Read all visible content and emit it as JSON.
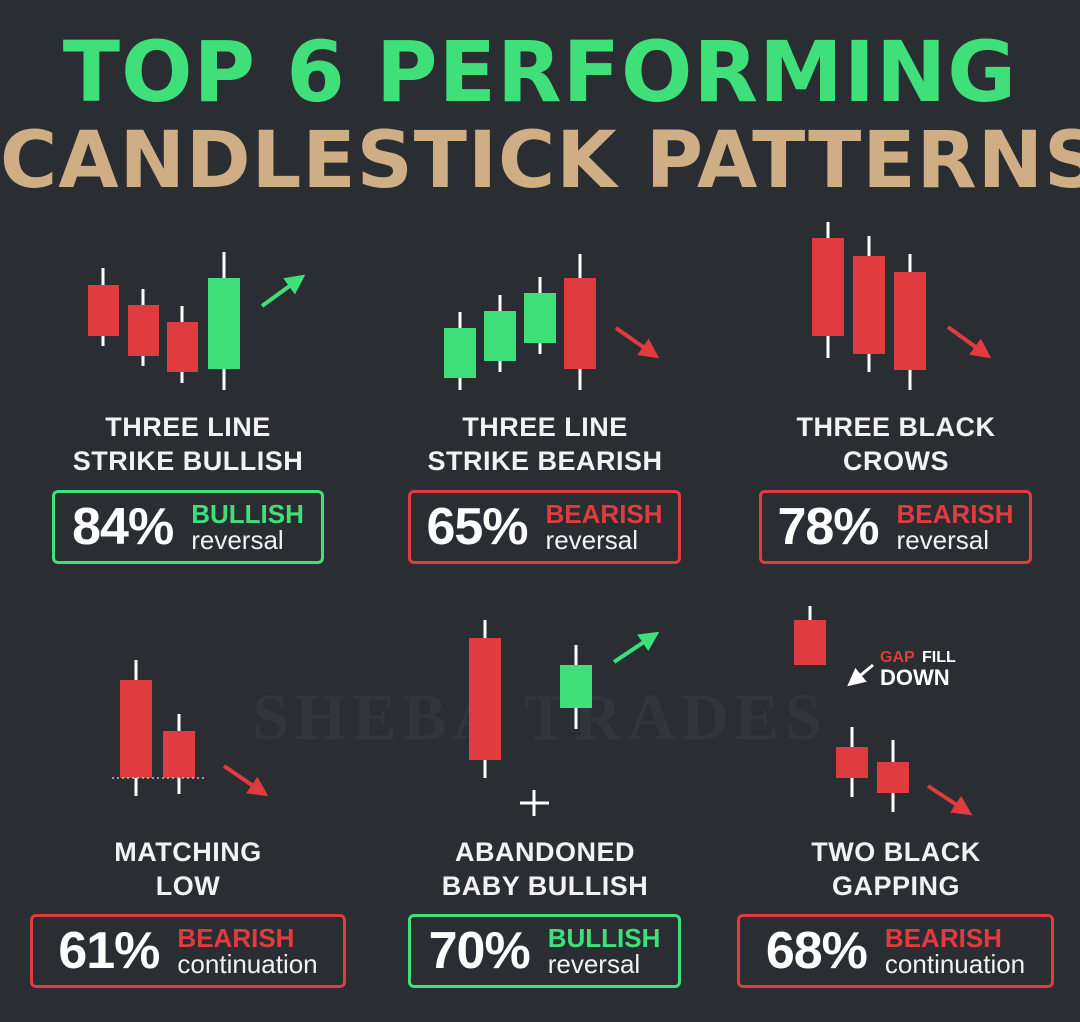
{
  "title_line1": "TOP 6 PERFORMING",
  "title_line2": "CANDLESTICK PATTERNS",
  "watermark": "SHEBA TRADES",
  "colors": {
    "background": "#2a2d32",
    "bullish": "#3fe07a",
    "bearish": "#e03b3f",
    "title_secondary": "#cfae86"
  },
  "patterns": [
    {
      "name_line1": "THREE LINE",
      "name_line2": "STRIKE BULLISH",
      "percent": "84%",
      "type": "BULLISH",
      "subtype": "reversal",
      "color": "green"
    },
    {
      "name_line1": "THREE LINE",
      "name_line2": "STRIKE BEARISH",
      "percent": "65%",
      "type": "BEARISH",
      "subtype": "reversal",
      "color": "red"
    },
    {
      "name_line1": "THREE BLACK",
      "name_line2": "CROWS",
      "percent": "78%",
      "type": "BEARISH",
      "subtype": "reversal",
      "color": "red"
    },
    {
      "name_line1": "MATCHING",
      "name_line2": "LOW",
      "percent": "61%",
      "type": "BEARISH",
      "subtype": "continuation",
      "color": "red"
    },
    {
      "name_line1": "ABANDONED",
      "name_line2": "BABY BULLISH",
      "percent": "70%",
      "type": "BULLISH",
      "subtype": "reversal",
      "color": "green"
    },
    {
      "name_line1": "TWO BLACK",
      "name_line2": "GAPPING",
      "percent": "68%",
      "type": "BEARISH",
      "subtype": "continuation",
      "color": "red"
    }
  ],
  "gap_label": {
    "word1": "GAP",
    "word2": "FILL",
    "word3": "DOWN"
  }
}
